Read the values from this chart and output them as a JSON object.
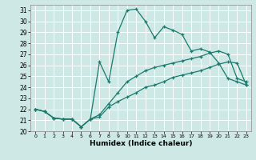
{
  "xlabel": "Humidex (Indice chaleur)",
  "bg_color": "#cde8e5",
  "grid_color": "#ffffff",
  "line_color": "#1a7a6e",
  "xlim": [
    -0.5,
    23.5
  ],
  "ylim": [
    20,
    31.5
  ],
  "yticks": [
    20,
    21,
    22,
    23,
    24,
    25,
    26,
    27,
    28,
    29,
    30,
    31
  ],
  "xticks": [
    0,
    1,
    2,
    3,
    4,
    5,
    6,
    7,
    8,
    9,
    10,
    11,
    12,
    13,
    14,
    15,
    16,
    17,
    18,
    19,
    20,
    21,
    22,
    23
  ],
  "lines": [
    {
      "x": [
        0,
        1,
        2,
        3,
        4,
        5,
        6,
        7,
        8,
        9,
        10,
        11,
        12,
        13,
        14,
        15,
        16,
        17,
        18,
        19,
        20,
        21,
        22,
        23
      ],
      "y": [
        22,
        21.8,
        21.2,
        21.1,
        21.1,
        20.4,
        21.1,
        21.3,
        22.2,
        22.7,
        23.1,
        23.5,
        24.0,
        24.2,
        24.5,
        24.9,
        25.1,
        25.3,
        25.5,
        25.8,
        26.1,
        26.3,
        26.2,
        24.2
      ]
    },
    {
      "x": [
        0,
        1,
        2,
        3,
        4,
        5,
        6,
        7,
        8,
        9,
        10,
        11,
        12,
        13,
        14,
        15,
        16,
        17,
        18,
        19,
        20,
        21,
        22,
        23
      ],
      "y": [
        22,
        21.8,
        21.2,
        21.1,
        21.1,
        20.4,
        21.1,
        21.5,
        22.5,
        23.5,
        24.5,
        25.0,
        25.5,
        25.8,
        26.0,
        26.2,
        26.4,
        26.6,
        26.8,
        27.1,
        27.3,
        27.0,
        24.8,
        24.5
      ]
    },
    {
      "x": [
        0,
        1,
        2,
        3,
        4,
        5,
        6,
        7,
        8,
        9,
        10,
        11,
        12,
        13,
        14,
        15,
        16,
        17,
        18,
        19,
        20,
        21,
        22,
        23
      ],
      "y": [
        22,
        21.8,
        21.2,
        21.1,
        21.1,
        20.4,
        21.1,
        26.3,
        24.5,
        29.0,
        31.0,
        31.1,
        30.0,
        28.5,
        29.5,
        29.2,
        28.8,
        27.3,
        27.5,
        27.2,
        26.2,
        24.8,
        24.5,
        24.2
      ]
    }
  ]
}
